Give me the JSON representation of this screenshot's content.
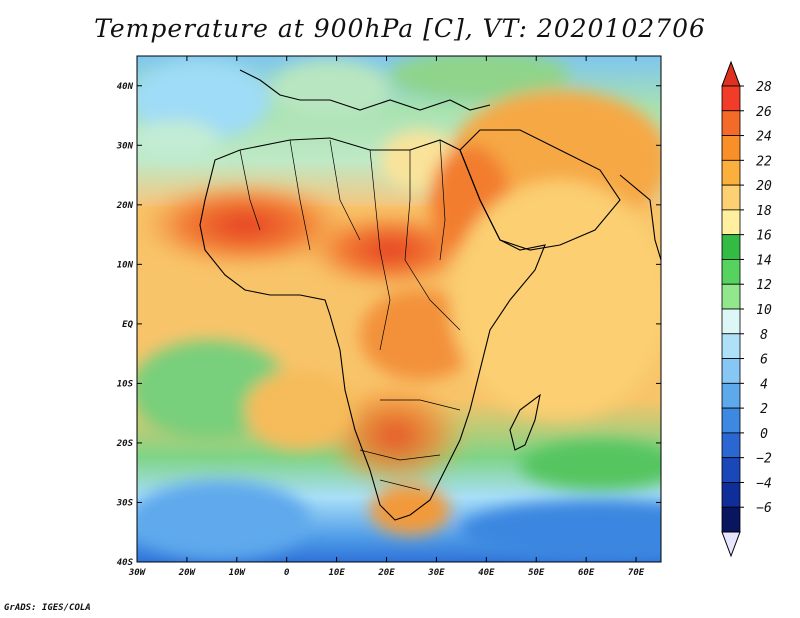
{
  "title": "Temperature at 900hPa [C], VT: 2020102706",
  "credit": "GrADS: IGES/COLA",
  "map": {
    "lon_range": [
      -30,
      75
    ],
    "lat_range": [
      -40,
      45
    ],
    "lon_ticks": [
      {
        "lon": -30,
        "label": "30W"
      },
      {
        "lon": -20,
        "label": "20W"
      },
      {
        "lon": -10,
        "label": "10W"
      },
      {
        "lon": 0,
        "label": "0"
      },
      {
        "lon": 10,
        "label": "10E"
      },
      {
        "lon": 20,
        "label": "20E"
      },
      {
        "lon": 30,
        "label": "30E"
      },
      {
        "lon": 40,
        "label": "40E"
      },
      {
        "lon": 50,
        "label": "50E"
      },
      {
        "lon": 60,
        "label": "60E"
      },
      {
        "lon": 70,
        "label": "70E"
      }
    ],
    "lat_ticks": [
      {
        "lat": 40,
        "label": "40N"
      },
      {
        "lat": 30,
        "label": "30N"
      },
      {
        "lat": 20,
        "label": "20N"
      },
      {
        "lat": 10,
        "label": "10N"
      },
      {
        "lat": 0,
        "label": "EQ"
      },
      {
        "lat": -10,
        "label": "10S"
      },
      {
        "lat": -20,
        "label": "20S"
      },
      {
        "lat": -30,
        "label": "30S"
      },
      {
        "lat": -40,
        "label": "40S"
      }
    ],
    "colors": {
      "frame": "#000000",
      "coast": "#000000"
    }
  },
  "colorbar": {
    "levels": [
      28,
      26,
      24,
      22,
      20,
      18,
      16,
      14,
      12,
      10,
      8,
      6,
      4,
      2,
      0,
      -2,
      -4,
      -6
    ],
    "level_labels": [
      "28",
      "26",
      "24",
      "22",
      "20",
      "18",
      "16",
      "14",
      "12",
      "10",
      "8",
      "6",
      "4",
      "2",
      "0",
      "−2",
      "−4",
      "−6"
    ],
    "colors_top_to_bottom": [
      "#f03c28",
      "#f46a28",
      "#f98f28",
      "#fbaf3c",
      "#fdd073",
      "#fff0a0",
      "#33bb44",
      "#55d35e",
      "#92e68c",
      "#dcf7f5",
      "#aee0f8",
      "#86c7f4",
      "#5ea8ec",
      "#3d88e0",
      "#2a67d2",
      "#1a48b8",
      "#0f2e99",
      "#0a1560"
    ],
    "over_color": "#e0301f",
    "under_color": "#e6e6ff"
  }
}
